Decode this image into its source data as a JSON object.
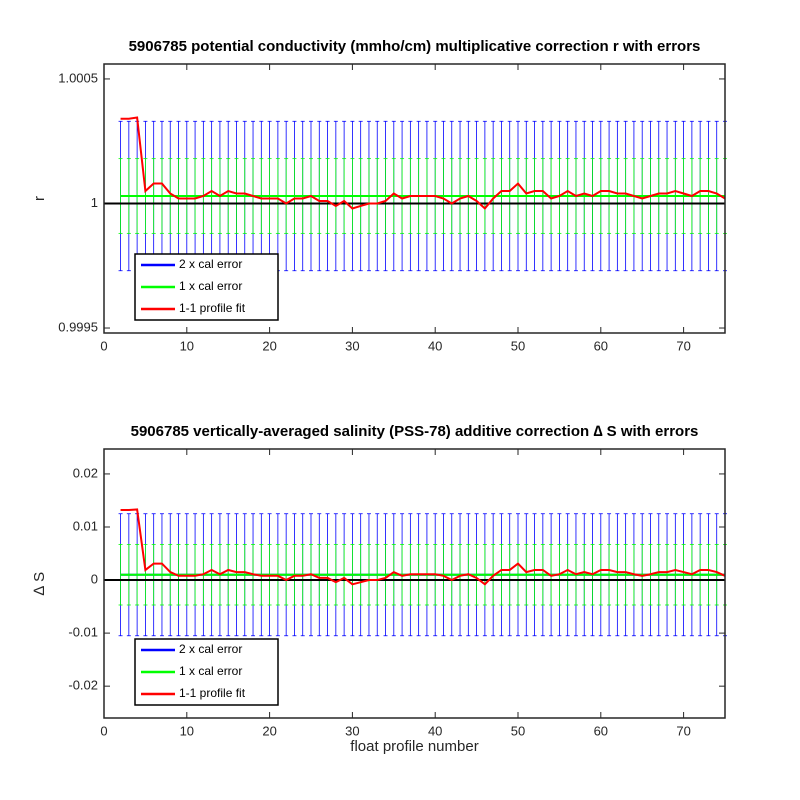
{
  "chart_data": [
    {
      "type": "errorbar",
      "title": "5906785 potential conductivity (mmho/cm) multiplicative correction r with errors",
      "ylabel": "r",
      "x": [
        2,
        3,
        4,
        5,
        6,
        7,
        8,
        9,
        10,
        11,
        12,
        13,
        14,
        15,
        16,
        17,
        18,
        19,
        20,
        21,
        22,
        23,
        24,
        25,
        26,
        27,
        28,
        29,
        30,
        31,
        32,
        33,
        34,
        35,
        36,
        37,
        38,
        39,
        40,
        41,
        42,
        43,
        44,
        45,
        46,
        47,
        48,
        49,
        50,
        51,
        52,
        53,
        54,
        55,
        56,
        57,
        58,
        59,
        60,
        61,
        62,
        63,
        64,
        65,
        66,
        67,
        68,
        69,
        70,
        71,
        72,
        73,
        74,
        75
      ],
      "xlim": [
        0,
        75
      ],
      "xticks": [
        0,
        10,
        20,
        30,
        40,
        50,
        60,
        70
      ],
      "ylim": [
        0.99948,
        1.00056
      ],
      "yticks": [
        0.9995,
        1,
        1.0005
      ],
      "hline": 1,
      "series": [
        {
          "name": "2 x cal error",
          "color": "#0000ff",
          "values": [
            1.00003,
            1.00003,
            1.00003,
            1.00003,
            1.00003,
            1.00003,
            1.00003,
            1.00003,
            1.00003,
            1.00003,
            1.00003,
            1.00003,
            1.00003,
            1.00003,
            1.00003,
            1.00003,
            1.00003,
            1.00003,
            1.00003,
            1.00003,
            1.00003,
            1.00003,
            1.00003,
            1.00003,
            1.00003,
            1.00003,
            1.00003,
            1.00003,
            1.00003,
            1.00003,
            1.00003,
            1.00003,
            1.00003,
            1.00003,
            1.00003,
            1.00003,
            1.00003,
            1.00003,
            1.00003,
            1.00003,
            1.00003,
            1.00003,
            1.00003,
            1.00003,
            1.00003,
            1.00003,
            1.00003,
            1.00003,
            1.00003,
            1.00003,
            1.00003,
            1.00003,
            1.00003,
            1.00003,
            1.00003,
            1.00003,
            1.00003,
            1.00003,
            1.00003,
            1.00003,
            1.00003,
            1.00003,
            1.00003,
            1.00003,
            1.00003,
            1.00003,
            1.00003,
            1.00003,
            1.00003,
            1.00003,
            1.00003,
            1.00003,
            1.00003,
            1.00003
          ],
          "errors": [
            0.0003,
            0.0003,
            0.0003,
            0.0003,
            0.0003,
            0.0003,
            0.0003,
            0.0003,
            0.0003,
            0.0003,
            0.0003,
            0.0003,
            0.0003,
            0.0003,
            0.0003,
            0.0003,
            0.0003,
            0.0003,
            0.0003,
            0.0003,
            0.0003,
            0.0003,
            0.0003,
            0.0003,
            0.0003,
            0.0003,
            0.0003,
            0.0003,
            0.0003,
            0.0003,
            0.0003,
            0.0003,
            0.0003,
            0.0003,
            0.0003,
            0.0003,
            0.0003,
            0.0003,
            0.0003,
            0.0003,
            0.0003,
            0.0003,
            0.0003,
            0.0003,
            0.0003,
            0.0003,
            0.0003,
            0.0003,
            0.0003,
            0.0003,
            0.0003,
            0.0003,
            0.0003,
            0.0003,
            0.0003,
            0.0003,
            0.0003,
            0.0003,
            0.0003,
            0.0003,
            0.0003,
            0.0003,
            0.0003,
            0.0003,
            0.0003,
            0.0003,
            0.0003,
            0.0003,
            0.0003,
            0.0003,
            0.0003,
            0.0003,
            0.0003,
            0.0003
          ]
        },
        {
          "name": "1 x cal error",
          "color": "#00ff00",
          "values": [
            1.00003,
            1.00003,
            1.00003,
            1.00003,
            1.00003,
            1.00003,
            1.00003,
            1.00003,
            1.00003,
            1.00003,
            1.00003,
            1.00003,
            1.00003,
            1.00003,
            1.00003,
            1.00003,
            1.00003,
            1.00003,
            1.00003,
            1.00003,
            1.00003,
            1.00003,
            1.00003,
            1.00003,
            1.00003,
            1.00003,
            1.00003,
            1.00003,
            1.00003,
            1.00003,
            1.00003,
            1.00003,
            1.00003,
            1.00003,
            1.00003,
            1.00003,
            1.00003,
            1.00003,
            1.00003,
            1.00003,
            1.00003,
            1.00003,
            1.00003,
            1.00003,
            1.00003,
            1.00003,
            1.00003,
            1.00003,
            1.00003,
            1.00003,
            1.00003,
            1.00003,
            1.00003,
            1.00003,
            1.00003,
            1.00003,
            1.00003,
            1.00003,
            1.00003,
            1.00003,
            1.00003,
            1.00003,
            1.00003,
            1.00003,
            1.00003,
            1.00003,
            1.00003,
            1.00003,
            1.00003,
            1.00003,
            1.00003,
            1.00003,
            1.00003,
            1.00003
          ],
          "errors": [
            0.00015,
            0.00015,
            0.00015,
            0.00015,
            0.00015,
            0.00015,
            0.00015,
            0.00015,
            0.00015,
            0.00015,
            0.00015,
            0.00015,
            0.00015,
            0.00015,
            0.00015,
            0.00015,
            0.00015,
            0.00015,
            0.00015,
            0.00015,
            0.00015,
            0.00015,
            0.00015,
            0.00015,
            0.00015,
            0.00015,
            0.00015,
            0.00015,
            0.00015,
            0.00015,
            0.00015,
            0.00015,
            0.00015,
            0.00015,
            0.00015,
            0.00015,
            0.00015,
            0.00015,
            0.00015,
            0.00015,
            0.00015,
            0.00015,
            0.00015,
            0.00015,
            0.00015,
            0.00015,
            0.00015,
            0.00015,
            0.00015,
            0.00015,
            0.00015,
            0.00015,
            0.00015,
            0.00015,
            0.00015,
            0.00015,
            0.00015,
            0.00015,
            0.00015,
            0.00015,
            0.00015,
            0.00015,
            0.00015,
            0.00015,
            0.00015,
            0.00015,
            0.00015,
            0.00015,
            0.00015,
            0.00015,
            0.00015,
            0.00015,
            0.00015,
            0.00015
          ]
        },
        {
          "name": "1-1 profile fit",
          "color": "#ff0000",
          "values": [
            1.00034,
            1.00034,
            1.000345,
            1.00005,
            1.00008,
            1.00008,
            1.00004,
            1.00002,
            1.00002,
            1.00002,
            1.00003,
            1.00005,
            1.00003,
            1.00005,
            1.00004,
            1.00004,
            1.00003,
            1.00002,
            1.00002,
            1.00002,
            1.0,
            1.00002,
            1.00002,
            1.00003,
            1.00001,
            1.00001,
            0.99999,
            1.00001,
            0.99998,
            0.99999,
            1.0,
            1.0,
            1.00001,
            1.00004,
            1.00002,
            1.00003,
            1.00003,
            1.00003,
            1.00003,
            1.00002,
            1.0,
            1.00002,
            1.00003,
            1.00001,
            0.99998,
            1.00002,
            1.00005,
            1.00005,
            1.00008,
            1.00004,
            1.00005,
            1.00005,
            1.00002,
            1.00003,
            1.00005,
            1.00003,
            1.00004,
            1.00003,
            1.00005,
            1.00005,
            1.00004,
            1.00004,
            1.00003,
            1.00002,
            1.00003,
            1.00004,
            1.00004,
            1.00005,
            1.00004,
            1.00003,
            1.00005,
            1.00005,
            1.00004,
            1.00002
          ]
        }
      ]
    },
    {
      "type": "errorbar",
      "title": "5906785 vertically-averaged salinity (PSS-78) additive correction ∆ S with errors",
      "ylabel": "∆ S",
      "xlabel": "float profile number",
      "x": [
        2,
        3,
        4,
        5,
        6,
        7,
        8,
        9,
        10,
        11,
        12,
        13,
        14,
        15,
        16,
        17,
        18,
        19,
        20,
        21,
        22,
        23,
        24,
        25,
        26,
        27,
        28,
        29,
        30,
        31,
        32,
        33,
        34,
        35,
        36,
        37,
        38,
        39,
        40,
        41,
        42,
        43,
        44,
        45,
        46,
        47,
        48,
        49,
        50,
        51,
        52,
        53,
        54,
        55,
        56,
        57,
        58,
        59,
        60,
        61,
        62,
        63,
        64,
        65,
        66,
        67,
        68,
        69,
        70,
        71,
        72,
        73,
        74,
        75
      ],
      "xlim": [
        0,
        75
      ],
      "xticks": [
        0,
        10,
        20,
        30,
        40,
        50,
        60,
        70
      ],
      "ylim": [
        -0.026,
        0.0247
      ],
      "yticks": [
        -0.02,
        -0.01,
        0,
        0.01,
        0.02
      ],
      "hline": 0,
      "series": [
        {
          "name": "2 x cal error",
          "color": "#0000ff",
          "values": [
            0.001,
            0.001,
            0.001,
            0.001,
            0.001,
            0.001,
            0.001,
            0.001,
            0.001,
            0.001,
            0.001,
            0.001,
            0.001,
            0.001,
            0.001,
            0.001,
            0.001,
            0.001,
            0.001,
            0.001,
            0.001,
            0.001,
            0.001,
            0.001,
            0.001,
            0.001,
            0.001,
            0.001,
            0.001,
            0.001,
            0.001,
            0.001,
            0.001,
            0.001,
            0.001,
            0.001,
            0.001,
            0.001,
            0.001,
            0.001,
            0.001,
            0.001,
            0.001,
            0.001,
            0.001,
            0.001,
            0.001,
            0.001,
            0.001,
            0.001,
            0.001,
            0.001,
            0.001,
            0.001,
            0.001,
            0.001,
            0.001,
            0.001,
            0.001,
            0.001,
            0.001,
            0.001,
            0.001,
            0.001,
            0.001,
            0.001,
            0.001,
            0.001,
            0.001,
            0.001,
            0.001,
            0.001,
            0.001,
            0.001
          ],
          "errors": [
            0.0115,
            0.0115,
            0.0115,
            0.0115,
            0.0115,
            0.0115,
            0.0115,
            0.0115,
            0.0115,
            0.0115,
            0.0115,
            0.0115,
            0.0115,
            0.0115,
            0.0115,
            0.0115,
            0.0115,
            0.0115,
            0.0115,
            0.0115,
            0.0115,
            0.0115,
            0.0115,
            0.0115,
            0.0115,
            0.0115,
            0.0115,
            0.0115,
            0.0115,
            0.0115,
            0.0115,
            0.0115,
            0.0115,
            0.0115,
            0.0115,
            0.0115,
            0.0115,
            0.0115,
            0.0115,
            0.0115,
            0.0115,
            0.0115,
            0.0115,
            0.0115,
            0.0115,
            0.0115,
            0.0115,
            0.0115,
            0.0115,
            0.0115,
            0.0115,
            0.0115,
            0.0115,
            0.0115,
            0.0115,
            0.0115,
            0.0115,
            0.0115,
            0.0115,
            0.0115,
            0.0115,
            0.0115,
            0.0115,
            0.0115,
            0.0115,
            0.0115,
            0.0115,
            0.0115,
            0.0115,
            0.0115,
            0.0115,
            0.0115,
            0.0115,
            0.0115
          ]
        },
        {
          "name": "1 x cal error",
          "color": "#00ff00",
          "values": [
            0.001,
            0.001,
            0.001,
            0.001,
            0.001,
            0.001,
            0.001,
            0.001,
            0.001,
            0.001,
            0.001,
            0.001,
            0.001,
            0.001,
            0.001,
            0.001,
            0.001,
            0.001,
            0.001,
            0.001,
            0.001,
            0.001,
            0.001,
            0.001,
            0.001,
            0.001,
            0.001,
            0.001,
            0.001,
            0.001,
            0.001,
            0.001,
            0.001,
            0.001,
            0.001,
            0.001,
            0.001,
            0.001,
            0.001,
            0.001,
            0.001,
            0.001,
            0.001,
            0.001,
            0.001,
            0.001,
            0.001,
            0.001,
            0.001,
            0.001,
            0.001,
            0.001,
            0.001,
            0.001,
            0.001,
            0.001,
            0.001,
            0.001,
            0.001,
            0.001,
            0.001,
            0.001,
            0.001,
            0.001,
            0.001,
            0.001,
            0.001,
            0.001,
            0.001,
            0.001,
            0.001,
            0.001,
            0.001,
            0.001
          ],
          "errors": [
            0.0057,
            0.0057,
            0.0057,
            0.0057,
            0.0057,
            0.0057,
            0.0057,
            0.0057,
            0.0057,
            0.0057,
            0.0057,
            0.0057,
            0.0057,
            0.0057,
            0.0057,
            0.0057,
            0.0057,
            0.0057,
            0.0057,
            0.0057,
            0.0057,
            0.0057,
            0.0057,
            0.0057,
            0.0057,
            0.0057,
            0.0057,
            0.0057,
            0.0057,
            0.0057,
            0.0057,
            0.0057,
            0.0057,
            0.0057,
            0.0057,
            0.0057,
            0.0057,
            0.0057,
            0.0057,
            0.0057,
            0.0057,
            0.0057,
            0.0057,
            0.0057,
            0.0057,
            0.0057,
            0.0057,
            0.0057,
            0.0057,
            0.0057,
            0.0057,
            0.0057,
            0.0057,
            0.0057,
            0.0057,
            0.0057,
            0.0057,
            0.0057,
            0.0057,
            0.0057,
            0.0057,
            0.0057,
            0.0057,
            0.0057,
            0.0057,
            0.0057,
            0.0057,
            0.0057,
            0.0057,
            0.0057,
            0.0057,
            0.0057,
            0.0057,
            0.0057
          ]
        },
        {
          "name": "1-1 profile fit",
          "color": "#ff0000",
          "values": [
            0.0132,
            0.0132,
            0.0133,
            0.0019,
            0.0031,
            0.0031,
            0.0015,
            0.0008,
            0.0008,
            0.0008,
            0.0011,
            0.0019,
            0.0011,
            0.0019,
            0.0015,
            0.0015,
            0.0011,
            0.0008,
            0.0008,
            0.0008,
            0,
            0.0008,
            0.0008,
            0.0011,
            0.0004,
            0.0004,
            -0.0004,
            0.0004,
            -0.0008,
            -0.0004,
            0,
            0,
            0.0004,
            0.0015,
            0.0008,
            0.0011,
            0.0011,
            0.0011,
            0.0011,
            0.0008,
            0,
            0.0008,
            0.0011,
            0.0004,
            -0.0008,
            0.0008,
            0.0019,
            0.0019,
            0.0031,
            0.0015,
            0.0019,
            0.0019,
            0.0008,
            0.0011,
            0.0019,
            0.0011,
            0.0015,
            0.0011,
            0.0019,
            0.0019,
            0.0015,
            0.0015,
            0.0011,
            0.0008,
            0.0011,
            0.0015,
            0.0015,
            0.0019,
            0.0015,
            0.0011,
            0.0019,
            0.0019,
            0.0015,
            0.0008
          ]
        }
      ]
    }
  ]
}
